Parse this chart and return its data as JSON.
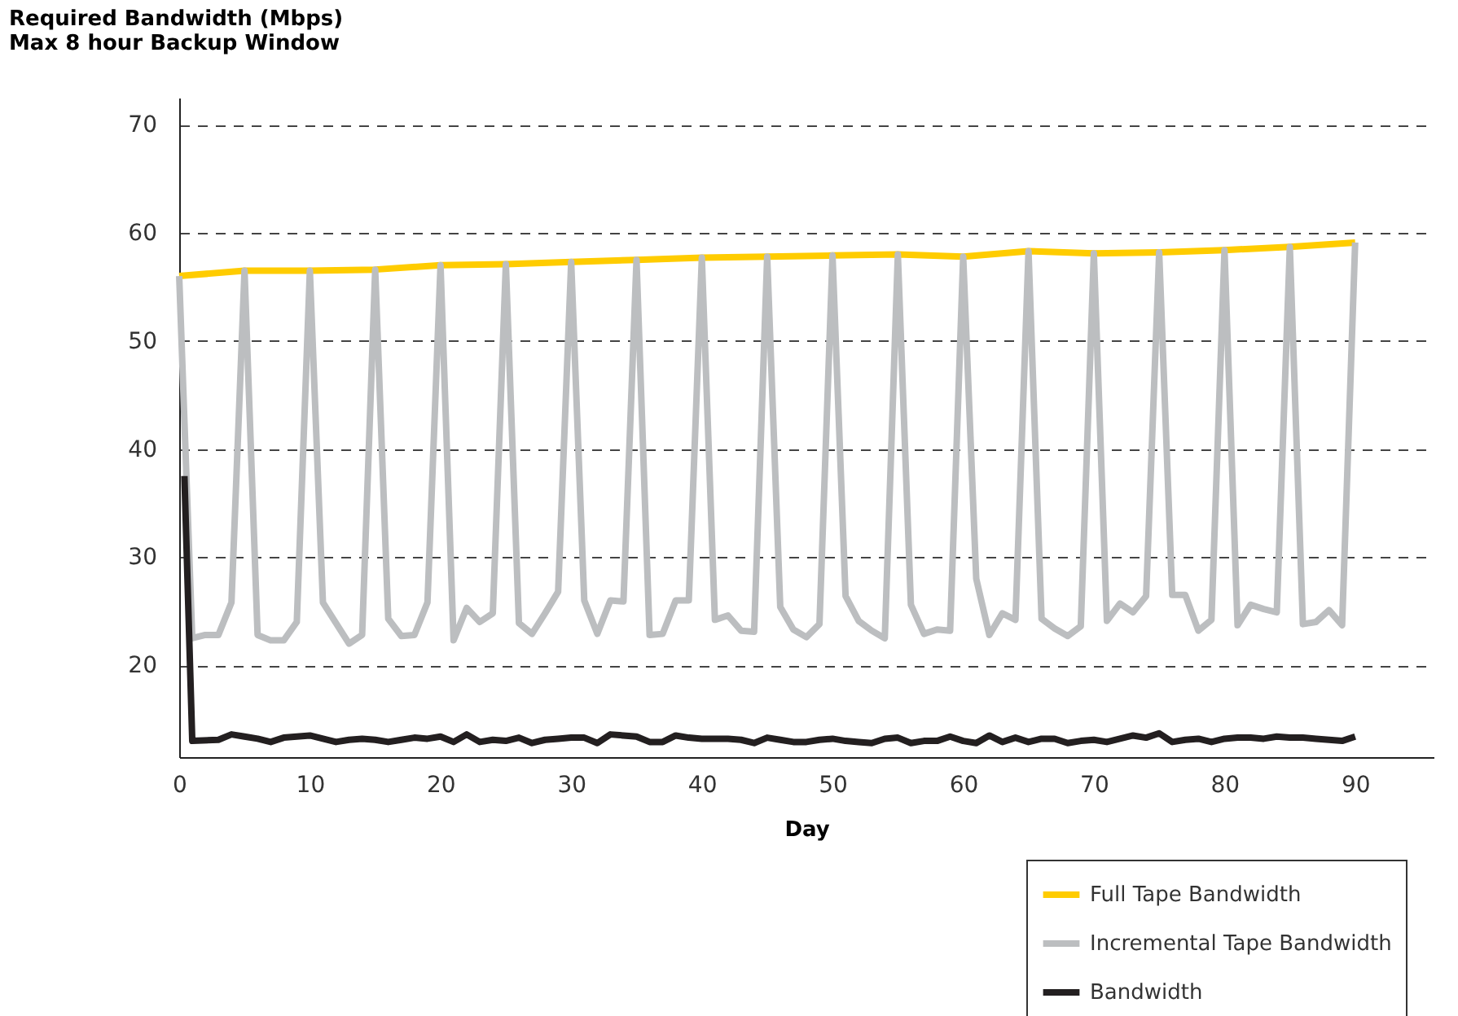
{
  "chart_data": {
    "type": "line",
    "ylabel": "Required Bandwidth (Mbps)\nMax 8 hour Backup Window",
    "xlabel": "Day",
    "xlim": [
      0,
      96
    ],
    "ylim": [
      11.5,
      72.5
    ],
    "xticks": [
      0,
      10,
      20,
      30,
      40,
      50,
      60,
      70,
      80,
      90
    ],
    "yticks": [
      20,
      30,
      40,
      50,
      60,
      70
    ],
    "grid": "y",
    "legend": "bottom right",
    "line_style": "solid",
    "marker": "none",
    "series": [
      {
        "name": "Full Tape Bandwidth",
        "color": "#ffcc00",
        "x": [
          0,
          5,
          10,
          15,
          20,
          25,
          30,
          35,
          40,
          45,
          50,
          55,
          60,
          65,
          70,
          75,
          80,
          85,
          90
        ],
        "values": [
          56,
          56.5,
          56.5,
          56.6,
          57,
          57.1,
          57.3,
          57.5,
          57.7,
          57.8,
          57.9,
          58,
          57.8,
          58.3,
          58.1,
          58.2,
          58.4,
          58.7,
          59.1
        ]
      },
      {
        "name": "Incremental Tape Bandwidth",
        "color": "#bcbec0",
        "x": [
          0,
          1,
          2,
          3,
          4,
          5,
          6,
          7,
          8,
          9,
          10,
          11,
          12,
          13,
          14,
          15,
          16,
          17,
          18,
          19,
          20,
          21,
          22,
          23,
          24,
          25,
          26,
          27,
          28,
          29,
          30,
          31,
          32,
          33,
          34,
          35,
          36,
          37,
          38,
          39,
          40,
          41,
          42,
          43,
          44,
          45,
          46,
          47,
          48,
          49,
          50,
          51,
          52,
          53,
          54,
          55,
          56,
          57,
          58,
          59,
          60,
          61,
          62,
          63,
          64,
          65,
          66,
          67,
          68,
          69,
          70,
          71,
          72,
          73,
          74,
          75,
          76,
          77,
          78,
          79,
          80,
          81,
          82,
          83,
          84,
          85,
          86,
          87,
          88,
          89,
          90
        ],
        "values": [
          56,
          22.5,
          22.8,
          22.8,
          25.8,
          56.5,
          22.8,
          22.3,
          22.3,
          24,
          56.5,
          25.8,
          23.9,
          22,
          22.8,
          56.6,
          24.3,
          22.7,
          22.8,
          25.8,
          57,
          22.3,
          25.3,
          24,
          24.8,
          57.1,
          23.9,
          22.9,
          24.8,
          26.8,
          57.3,
          26,
          22.9,
          26,
          25.9,
          57.5,
          22.8,
          22.9,
          26,
          26,
          57.7,
          24.2,
          24.6,
          23.2,
          23.1,
          57.8,
          25.4,
          23.3,
          22.6,
          23.8,
          57.9,
          26.4,
          24.1,
          23.2,
          22.5,
          58,
          25.6,
          22.9,
          23.3,
          23.2,
          57.8,
          28,
          22.8,
          24.8,
          24.2,
          58.3,
          24.3,
          23.4,
          22.7,
          23.6,
          58.1,
          24.1,
          25.7,
          24.9,
          26.4,
          58.2,
          26.5,
          26.5,
          23.2,
          24.2,
          58.4,
          23.7,
          25.6,
          25.2,
          24.9,
          58.7,
          23.8,
          24,
          25.1,
          23.7,
          59.1
        ]
      },
      {
        "name": "Bandwidth",
        "color": "#231f20",
        "x": [
          0.4,
          1,
          3,
          4,
          5,
          6,
          7,
          8,
          9,
          10,
          11,
          12,
          13,
          14,
          15,
          16,
          17,
          18,
          19,
          20,
          21,
          22,
          23,
          24,
          25,
          26,
          27,
          28,
          29,
          30,
          31,
          32,
          33,
          34,
          35,
          36,
          37,
          38,
          39,
          40,
          41,
          42,
          43,
          44,
          45,
          46,
          47,
          48,
          49,
          50,
          51,
          52,
          53,
          54,
          55,
          56,
          57,
          58,
          59,
          60,
          61,
          62,
          63,
          64,
          65,
          66,
          67,
          68,
          69,
          70,
          71,
          72,
          73,
          74,
          75,
          76,
          77,
          78,
          79,
          80,
          81,
          82,
          83,
          84,
          85,
          86,
          87,
          88,
          89,
          90
        ],
        "values": [
          37.5,
          13,
          13.1,
          13.6,
          13.4,
          13.2,
          12.9,
          13.3,
          13.4,
          13.5,
          13.2,
          12.9,
          13.1,
          13.2,
          13.1,
          12.9,
          13.1,
          13.3,
          13.2,
          13.4,
          12.9,
          13.6,
          12.9,
          13.1,
          13,
          13.3,
          12.8,
          13.1,
          13.2,
          13.3,
          13.3,
          12.8,
          13.6,
          13.5,
          13.4,
          12.9,
          12.9,
          13.5,
          13.3,
          13.2,
          13.2,
          13.2,
          13.1,
          12.8,
          13.3,
          13.1,
          12.9,
          12.9,
          13.1,
          13.2,
          13,
          12.9,
          12.8,
          13.2,
          13.3,
          12.8,
          13,
          13,
          13.4,
          13,
          12.8,
          13.5,
          12.9,
          13.3,
          12.9,
          13.2,
          13.2,
          12.8,
          13,
          13.1,
          12.9,
          13.2,
          13.5,
          13.3,
          13.7,
          12.9,
          13.1,
          13.2,
          12.9,
          13.2,
          13.3,
          13.3,
          13.2,
          13.4,
          13.3,
          13.3,
          13.2,
          13.1,
          13,
          13.4
        ]
      }
    ]
  }
}
